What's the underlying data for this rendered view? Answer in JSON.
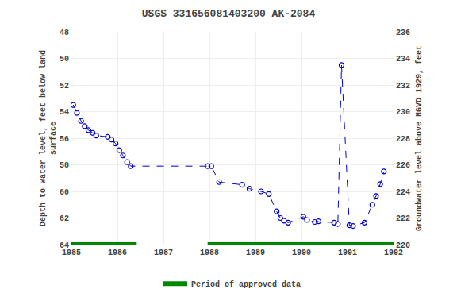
{
  "chart_data": {
    "type": "line",
    "title": "USGS 331656081403200 AK-2084",
    "y_label": "Depth to water level, feet below land\nsurface",
    "y2_label": "Groundwater level above NGVD 1929, feet",
    "x": [
      1985.04,
      1985.12,
      1985.21,
      1985.29,
      1985.37,
      1985.46,
      1985.54,
      1985.79,
      1985.87,
      1985.96,
      1986.04,
      1986.12,
      1986.21,
      1986.29,
      1987.96,
      1988.04,
      1988.21,
      1988.71,
      1988.87,
      1989.12,
      1989.29,
      1989.46,
      1989.54,
      1989.62,
      1989.71,
      1990.04,
      1990.12,
      1990.29,
      1990.37,
      1990.71,
      1990.79,
      1990.87,
      1991.04,
      1991.12,
      1991.37,
      1991.54,
      1991.62,
      1991.71,
      1991.79
    ],
    "series": [
      {
        "color": "#0000cc",
        "line_style": "dashed",
        "marker": "open circle",
        "values": [
          53.5,
          54.1,
          54.7,
          55.1,
          55.4,
          55.6,
          55.8,
          55.9,
          56.1,
          56.4,
          56.9,
          57.3,
          57.8,
          58.1,
          58.1,
          58.1,
          59.3,
          59.5,
          59.8,
          60.0,
          60.2,
          61.5,
          62.0,
          62.2,
          62.35,
          61.9,
          62.15,
          62.3,
          62.25,
          62.35,
          62.45,
          50.5,
          62.55,
          62.6,
          62.35,
          61.0,
          60.35,
          59.45,
          58.5
        ]
      },
      {
        "name": "Period of approved data",
        "type": "span",
        "color": "#008800",
        "ranges": [
          [
            1985.0,
            1986.42
          ],
          [
            1987.96,
            1992.0
          ]
        ]
      }
    ],
    "xlim": [
      1985.0,
      1992.0
    ],
    "xticks": [
      1985,
      1986,
      1987,
      1988,
      1989,
      1990,
      1991,
      1992
    ],
    "ylim": [
      64,
      48
    ],
    "yticks": [
      48,
      50,
      52,
      54,
      56,
      58,
      60,
      62,
      64
    ],
    "y2lim": [
      220,
      236
    ],
    "y2ticks": [
      220,
      222,
      224,
      226,
      228,
      230,
      232,
      234,
      236
    ],
    "grid": true,
    "legend": "bottom"
  }
}
